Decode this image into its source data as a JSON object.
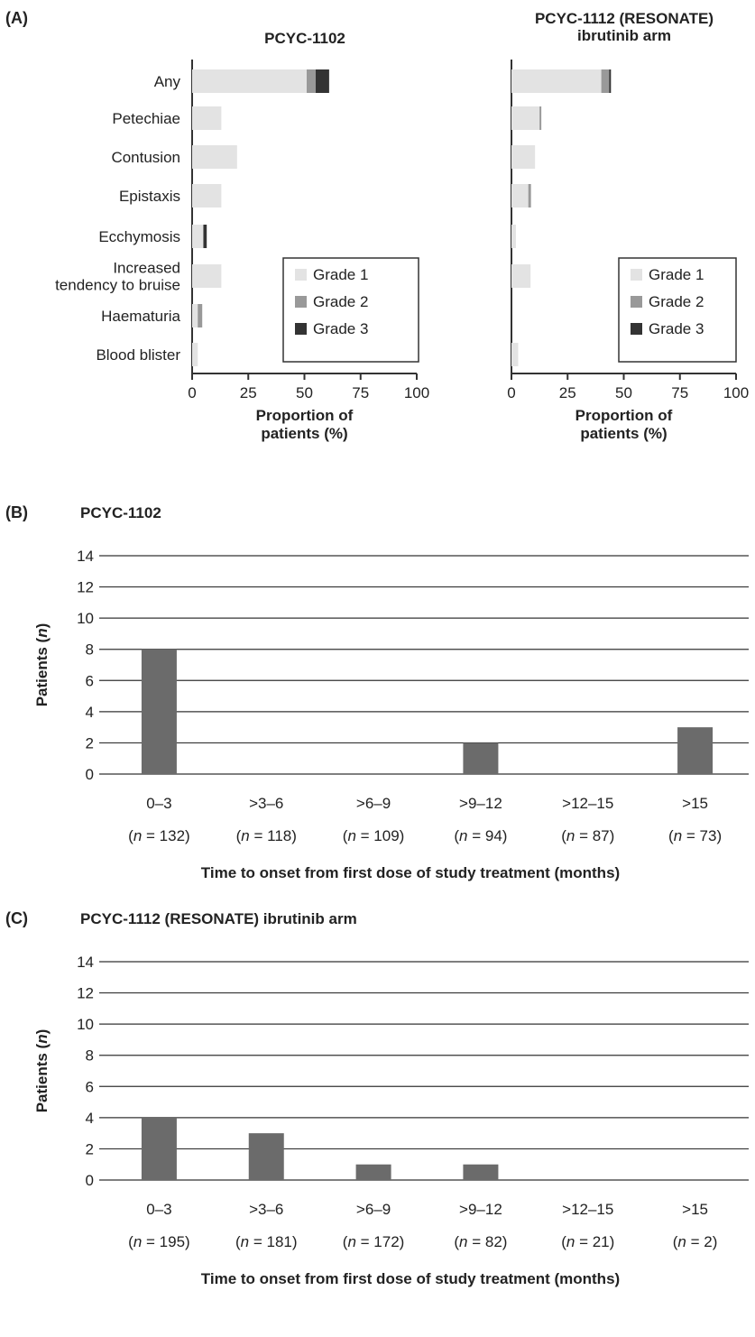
{
  "panels": {
    "a_label": "(A)",
    "b_label": "(B)",
    "c_label": "(C)"
  },
  "legend": {
    "grade1": "Grade 1",
    "grade2": "Grade 2",
    "grade3": "Grade 3"
  },
  "colors": {
    "grade1": "#e3e3e3",
    "grade2": "#999999",
    "grade3": "#333333",
    "bar": "#6b6b6b",
    "axis": "#333333"
  },
  "chart_data": [
    {
      "id": "a_left",
      "type": "bar",
      "orientation": "horizontal",
      "stacked": true,
      "title": "PCYC-1102",
      "xlabel": [
        "Proportion of",
        "patients (%)"
      ],
      "xlim": [
        0,
        100
      ],
      "xticks": [
        "0",
        "25",
        "50",
        "75",
        "100"
      ],
      "categories": [
        [
          "Any"
        ],
        [
          "Petechiae"
        ],
        [
          "Contusion"
        ],
        [
          "Epistaxis"
        ],
        [
          "Ecchymosis"
        ],
        [
          "Increased",
          "tendency to bruise"
        ],
        [
          "Haematuria"
        ],
        [
          "Blood blister"
        ]
      ],
      "series": [
        {
          "name": "Grade 1",
          "values": [
            51,
            13,
            20,
            13,
            5,
            13,
            2.5,
            2.5
          ]
        },
        {
          "name": "Grade 2",
          "values": [
            4,
            0,
            0,
            0,
            0,
            0,
            2,
            0
          ]
        },
        {
          "name": "Grade 3",
          "values": [
            6,
            0,
            0,
            0,
            1.5,
            0,
            0,
            0
          ]
        }
      ],
      "legend_position": "bottom-right"
    },
    {
      "id": "a_right",
      "type": "bar",
      "orientation": "horizontal",
      "stacked": true,
      "title": [
        "PCYC-1112 (RESONATE)",
        "ibrutinib arm"
      ],
      "xlabel": [
        "Proportion of",
        "patients (%)"
      ],
      "xlim": [
        0,
        100
      ],
      "xticks": [
        "0",
        "25",
        "50",
        "75",
        "100"
      ],
      "categories": [
        [
          "Any"
        ],
        [
          "Petechiae"
        ],
        [
          "Contusion"
        ],
        [
          "Epistaxis"
        ],
        [
          "Ecchymosis"
        ],
        [
          "Increased",
          "tendency to bruise"
        ],
        [
          "Haematuria"
        ],
        [
          "Blood blister"
        ]
      ],
      "series": [
        {
          "name": "Grade 1",
          "values": [
            40,
            12.5,
            10.5,
            7.5,
            2,
            8.5,
            0,
            3
          ]
        },
        {
          "name": "Grade 2",
          "values": [
            3.5,
            0.8,
            0,
            1.2,
            0,
            0,
            0,
            0
          ]
        },
        {
          "name": "Grade 3",
          "values": [
            0.8,
            0,
            0,
            0,
            0,
            0,
            0,
            0
          ]
        }
      ],
      "legend_position": "bottom-right"
    },
    {
      "id": "b",
      "type": "bar",
      "title": "PCYC-1102",
      "ylabel": "Patients (n)",
      "xlabel": "Time to onset from first dose of study treatment (months)",
      "ylim": [
        0,
        14
      ],
      "yticks": [
        "0",
        "2",
        "4",
        "6",
        "8",
        "10",
        "12",
        "14"
      ],
      "categories": [
        ">0–3",
        ">3–6",
        ">6–9",
        ">9–12",
        ">12–15",
        ">15"
      ],
      "category_labels": [
        "0–3",
        ">3–6",
        ">6–9",
        ">9–12",
        ">12–15",
        ">15"
      ],
      "n_values": [
        "132",
        "118",
        "109",
        "94",
        "87",
        "73"
      ],
      "values": [
        8,
        0,
        0,
        2,
        0,
        3
      ],
      "grid": true
    },
    {
      "id": "c",
      "type": "bar",
      "title": "PCYC-1112 (RESONATE) ibrutinib arm",
      "ylabel": "Patients (n)",
      "xlabel": "Time to onset from first dose of study treatment (months)",
      "ylim": [
        0,
        14
      ],
      "yticks": [
        "0",
        "2",
        "4",
        "6",
        "8",
        "10",
        "12",
        "14"
      ],
      "categories": [
        "0–3",
        ">3–6",
        ">6–9",
        ">9–12",
        ">12–15",
        ">15"
      ],
      "category_labels": [
        "0–3",
        ">3–6",
        ">6–9",
        ">9–12",
        ">12–15",
        ">15"
      ],
      "n_values": [
        "195",
        "181",
        "172",
        "82",
        "21",
        "2"
      ],
      "values": [
        4,
        3,
        1,
        1,
        0,
        0
      ],
      "grid": true
    }
  ]
}
